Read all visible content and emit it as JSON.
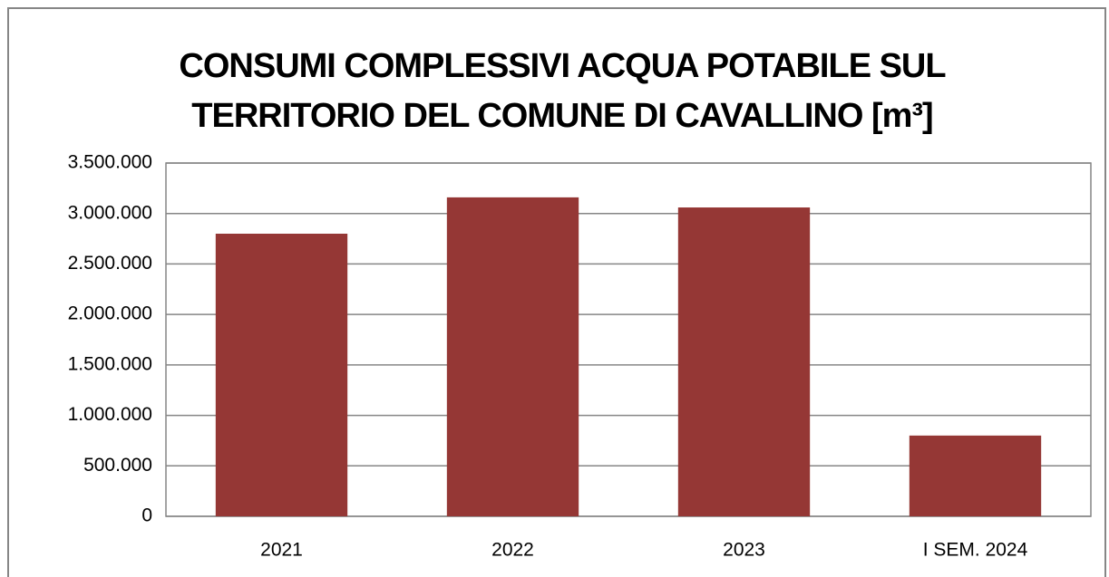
{
  "chart_data": {
    "type": "bar",
    "title": [
      "CONSUMI COMPLESSIVI ACQUA POTABILE SUL",
      "TERRITORIO DEL COMUNE DI CAVALLINO [m³]"
    ],
    "categories": [
      "2021",
      "2022",
      "2023",
      "I SEM. 2024"
    ],
    "values": [
      2800000,
      3160000,
      3060000,
      800000
    ],
    "color": "#953735",
    "ylim": [
      0,
      3500000
    ],
    "yticks": [
      0,
      {
        "value": 500000,
        "label": "500.000"
      },
      {
        "value": 1000000,
        "label": "1.000.000"
      },
      {
        "value": 1500000,
        "label": "1.500.000"
      },
      {
        "value": 2000000,
        "label": "2.000.000"
      },
      {
        "value": 2500000,
        "label": "2.500.000"
      },
      {
        "value": 3000000,
        "label": "3.000.000"
      },
      {
        "value": 3500000,
        "label": "3.500.000"
      }
    ],
    "grid": true
  }
}
